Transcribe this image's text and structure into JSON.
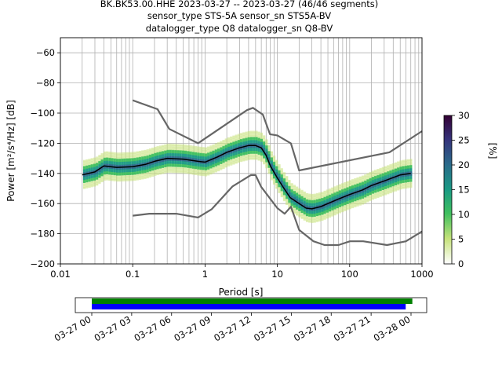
{
  "title": {
    "line1": "BK.BK53.00.HHE   2023-03-27 -- 2023-03-27  (46/46 segments)",
    "line2": "sensor_type STS-5A sensor_sn STS5A-BV",
    "line3": "datalogger_type Q8 datalogger_sn Q8-BV"
  },
  "chart_data": [
    {
      "type": "line",
      "xlabel": "Period [s]",
      "ylabel": "Power [m²/s⁴/Hz] [dB]",
      "xscale": "log",
      "xlim": [
        0.01,
        1000
      ],
      "ylim": [
        -200,
        -50
      ],
      "grid": true,
      "x_ticks": [
        0.01,
        0.1,
        1,
        10,
        100,
        1000
      ],
      "x_tick_labels": [
        "0.01",
        "0.1",
        "1",
        "10",
        "100",
        "1000"
      ],
      "y_ticks": [
        -200,
        -180,
        -160,
        -140,
        -120,
        -100,
        -80,
        -60
      ],
      "y_tick_labels": [
        "−200",
        "−180",
        "−160",
        "−140",
        "−120",
        "−100",
        "−80",
        "−60"
      ],
      "series": [
        {
          "role": "noise-model-high",
          "color": "#666666",
          "x": [
            0.1,
            0.22,
            0.32,
            0.8,
            3.8,
            4.6,
            6.3,
            7.9,
            10,
            15.4,
            20,
            354.8,
            1000
          ],
          "y": [
            -91.5,
            -97.4,
            -110.5,
            -120,
            -98,
            -96.5,
            -101,
            -114,
            -114.8,
            -120.1,
            -138,
            -126,
            -112
          ]
        },
        {
          "role": "noise-model-low",
          "color": "#666666",
          "x": [
            0.1,
            0.17,
            0.4,
            0.8,
            1.24,
            2.4,
            4.3,
            5,
            6,
            10,
            12.6,
            15.4,
            20,
            31.6,
            45,
            70,
            101,
            154,
            328,
            600,
            1000
          ],
          "y": [
            -168,
            -166.7,
            -166.7,
            -169.2,
            -163.7,
            -148.6,
            -141.1,
            -141.1,
            -149,
            -163,
            -166.7,
            -162.1,
            -177.5,
            -185,
            -187.5,
            -187.5,
            -185,
            -185,
            -187.5,
            -185,
            -178.5
          ]
        },
        {
          "role": "mode",
          "color": "#000000",
          "x": [
            0.02,
            0.03,
            0.04,
            0.06,
            0.1,
            0.15,
            0.2,
            0.3,
            0.5,
            0.8,
            1,
            1.5,
            2,
            3,
            4,
            5,
            6,
            7,
            8,
            10,
            12,
            15,
            20,
            25,
            30,
            40,
            50,
            70,
            100,
            150,
            200,
            300,
            500,
            700
          ],
          "y": [
            -141,
            -139,
            -135,
            -136,
            -135.5,
            -134,
            -132,
            -130,
            -130.5,
            -132,
            -132.5,
            -129,
            -126,
            -123,
            -121.5,
            -121.5,
            -123,
            -128,
            -135,
            -143,
            -149,
            -156,
            -160,
            -163,
            -163.5,
            -162,
            -160,
            -157,
            -154,
            -151,
            -148,
            -145,
            -141,
            -140
          ]
        },
        {
          "role": "psd-density",
          "type": "scatter",
          "colormap": "white-to-green-to-purple",
          "x": [
            0.02,
            0.03,
            0.04,
            0.06,
            0.1,
            0.15,
            0.2,
            0.3,
            0.5,
            0.8,
            1,
            1.5,
            2,
            3,
            4,
            5,
            6,
            7,
            8,
            10,
            12,
            15,
            20,
            25,
            30,
            40,
            50,
            70,
            100,
            150,
            200,
            300,
            500,
            700
          ],
          "y": [
            -141,
            -139,
            -135,
            -136,
            -135.5,
            -134,
            -132,
            -130,
            -130.5,
            -132,
            -132.5,
            -129,
            -126,
            -123,
            -121.5,
            -121.5,
            -123,
            -128,
            -135,
            -143,
            -149,
            -156,
            -160,
            -163,
            -163.5,
            -162,
            -160,
            -157,
            -154,
            -151,
            -148,
            -145,
            -141,
            -140
          ]
        }
      ]
    },
    {
      "type": "heatmap",
      "role": "colorbar",
      "ylabel": "[%]",
      "ylim": [
        0,
        30
      ],
      "y_ticks": [
        0,
        5,
        10,
        15,
        20,
        25,
        30
      ],
      "y_tick_labels": [
        "0",
        "5",
        "10",
        "15",
        "20",
        "25",
        "30"
      ],
      "colors": [
        "#ffffff",
        "#c6e27a",
        "#3fbf5e",
        "#1a9a84",
        "#2a6a8a",
        "#35327a",
        "#330033"
      ]
    },
    {
      "type": "bar",
      "role": "data-coverage",
      "x_ticks": [
        "03-27 00",
        "03-27 03",
        "03-27 06",
        "03-27 09",
        "03-27 12",
        "03-27 15",
        "03-27 18",
        "03-27 21",
        "03-28 00"
      ],
      "series": [
        {
          "color": "#008000",
          "start_hour": 0,
          "end_hour": 24.1
        },
        {
          "color": "#0000ff",
          "start_hour": 0,
          "end_hour": 23.6
        }
      ]
    }
  ]
}
